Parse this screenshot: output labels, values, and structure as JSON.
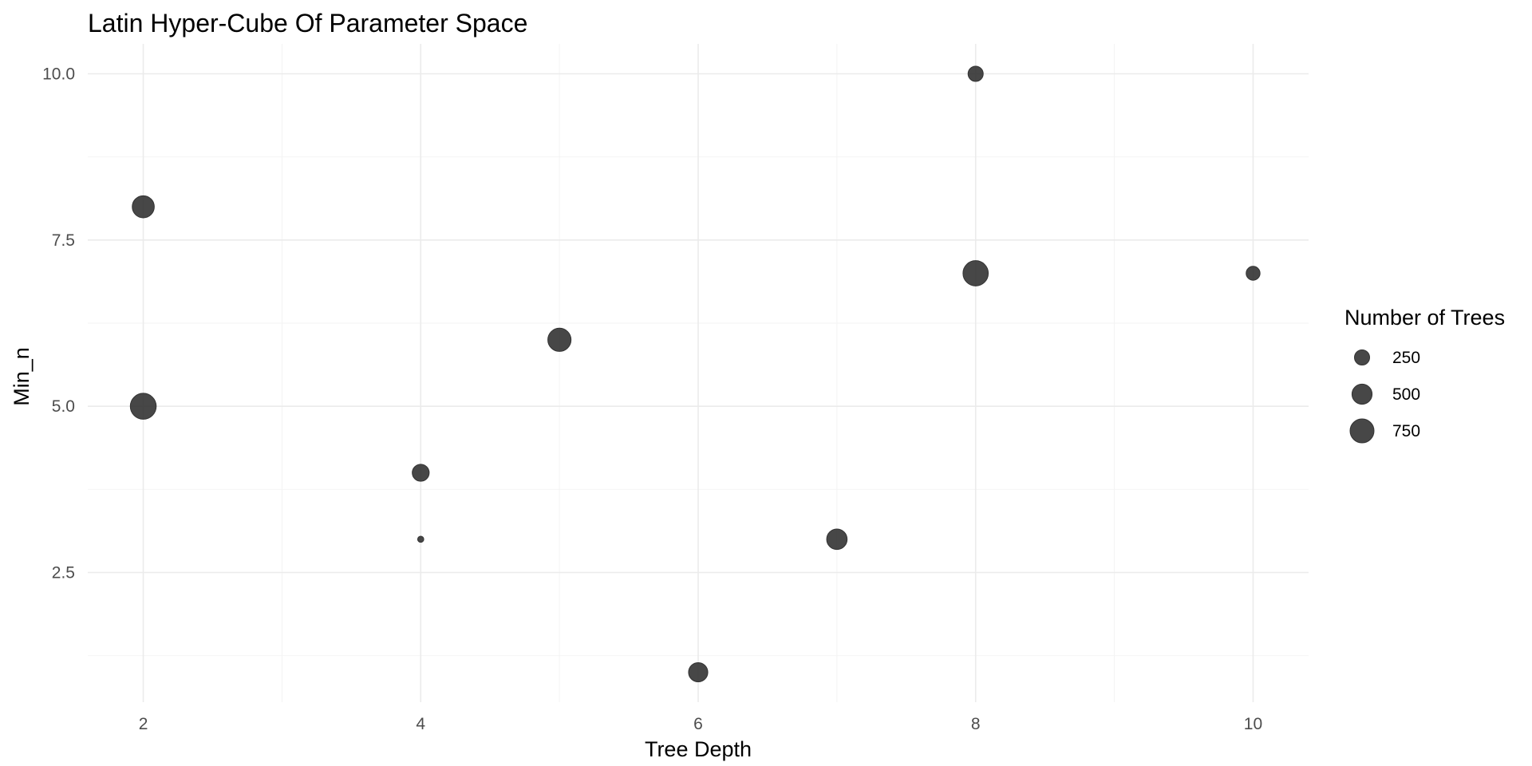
{
  "chart_data": {
    "type": "scatter",
    "title": "Latin Hyper-Cube Of Parameter Space",
    "xlabel": "Tree Depth",
    "ylabel": "Min_n",
    "xlim": [
      1.6,
      10.4
    ],
    "ylim": [
      0.55,
      10.45
    ],
    "x_ticks": [
      2,
      4,
      6,
      8,
      10
    ],
    "x_tick_labels": [
      "2",
      "4",
      "6",
      "8",
      "10"
    ],
    "x_minor": [
      3,
      5,
      7,
      9
    ],
    "y_ticks": [
      2.5,
      5.0,
      7.5,
      10.0
    ],
    "y_tick_labels": [
      "2.5",
      "5.0",
      "7.5",
      "10.0"
    ],
    "y_minor": [
      1.25,
      3.75,
      6.25,
      8.75
    ],
    "grid": true,
    "point_color": "#333333",
    "point_alpha": 0.9,
    "size_range": [
      0,
      1000
    ],
    "points": [
      {
        "x": 8,
        "y": 10,
        "trees": 250
      },
      {
        "x": 2,
        "y": 8,
        "trees": 620
      },
      {
        "x": 8,
        "y": 7,
        "trees": 850
      },
      {
        "x": 10,
        "y": 7,
        "trees": 200
      },
      {
        "x": 5,
        "y": 6,
        "trees": 700
      },
      {
        "x": 2,
        "y": 5,
        "trees": 900
      },
      {
        "x": 4,
        "y": 4,
        "trees": 330
      },
      {
        "x": 4,
        "y": 3,
        "trees": 15
      },
      {
        "x": 7,
        "y": 3,
        "trees": 520
      },
      {
        "x": 6,
        "y": 1,
        "trees": 450
      }
    ],
    "legend": {
      "title": "Number of Trees",
      "position": "right",
      "entries": [
        {
          "value": 250,
          "label": "250"
        },
        {
          "value": 500,
          "label": "500"
        },
        {
          "value": 750,
          "label": "750"
        }
      ]
    }
  }
}
